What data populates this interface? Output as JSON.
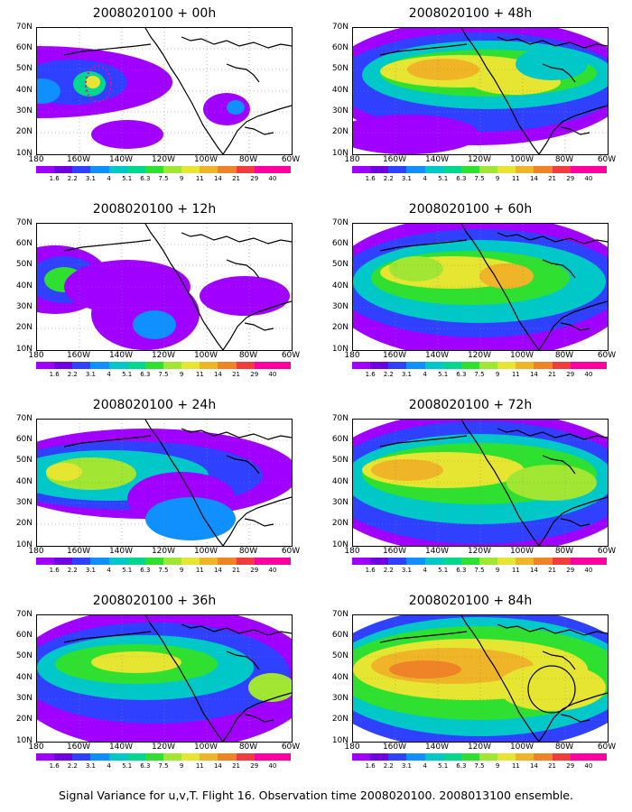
{
  "panels": [
    {
      "title": "2008020100 + 00h"
    },
    {
      "title": "2008020100 + 48h"
    },
    {
      "title": "2008020100 + 12h"
    },
    {
      "title": "2008020100 + 60h"
    },
    {
      "title": "2008020100 + 24h"
    },
    {
      "title": "2008020100 + 72h"
    },
    {
      "title": "2008020100 + 36h"
    },
    {
      "title": "2008020100 + 84h"
    }
  ],
  "lat_labels": [
    "70N",
    "60N",
    "50N",
    "40N",
    "30N",
    "20N",
    "10N"
  ],
  "lon_labels": [
    "180",
    "160W",
    "140W",
    "120W",
    "100W",
    "80W",
    "60W"
  ],
  "colorbar": {
    "labels": [
      "1.6",
      "2.2",
      "3.1",
      "4",
      "5.1",
      "6.3",
      "7.5",
      "9",
      "11",
      "14",
      "21",
      "29",
      "40"
    ],
    "colors": [
      "#a000ff",
      "#7000e0",
      "#3040ff",
      "#1090ff",
      "#00c8c8",
      "#00d890",
      "#30e030",
      "#a0e632",
      "#e6e632",
      "#f0b428",
      "#f08228",
      "#f03c3c",
      "#ff00a0"
    ]
  },
  "caption": "Signal Variance for u,v,T. Flight 16. Observation time 2008020100. 2008013100 ensemble."
}
